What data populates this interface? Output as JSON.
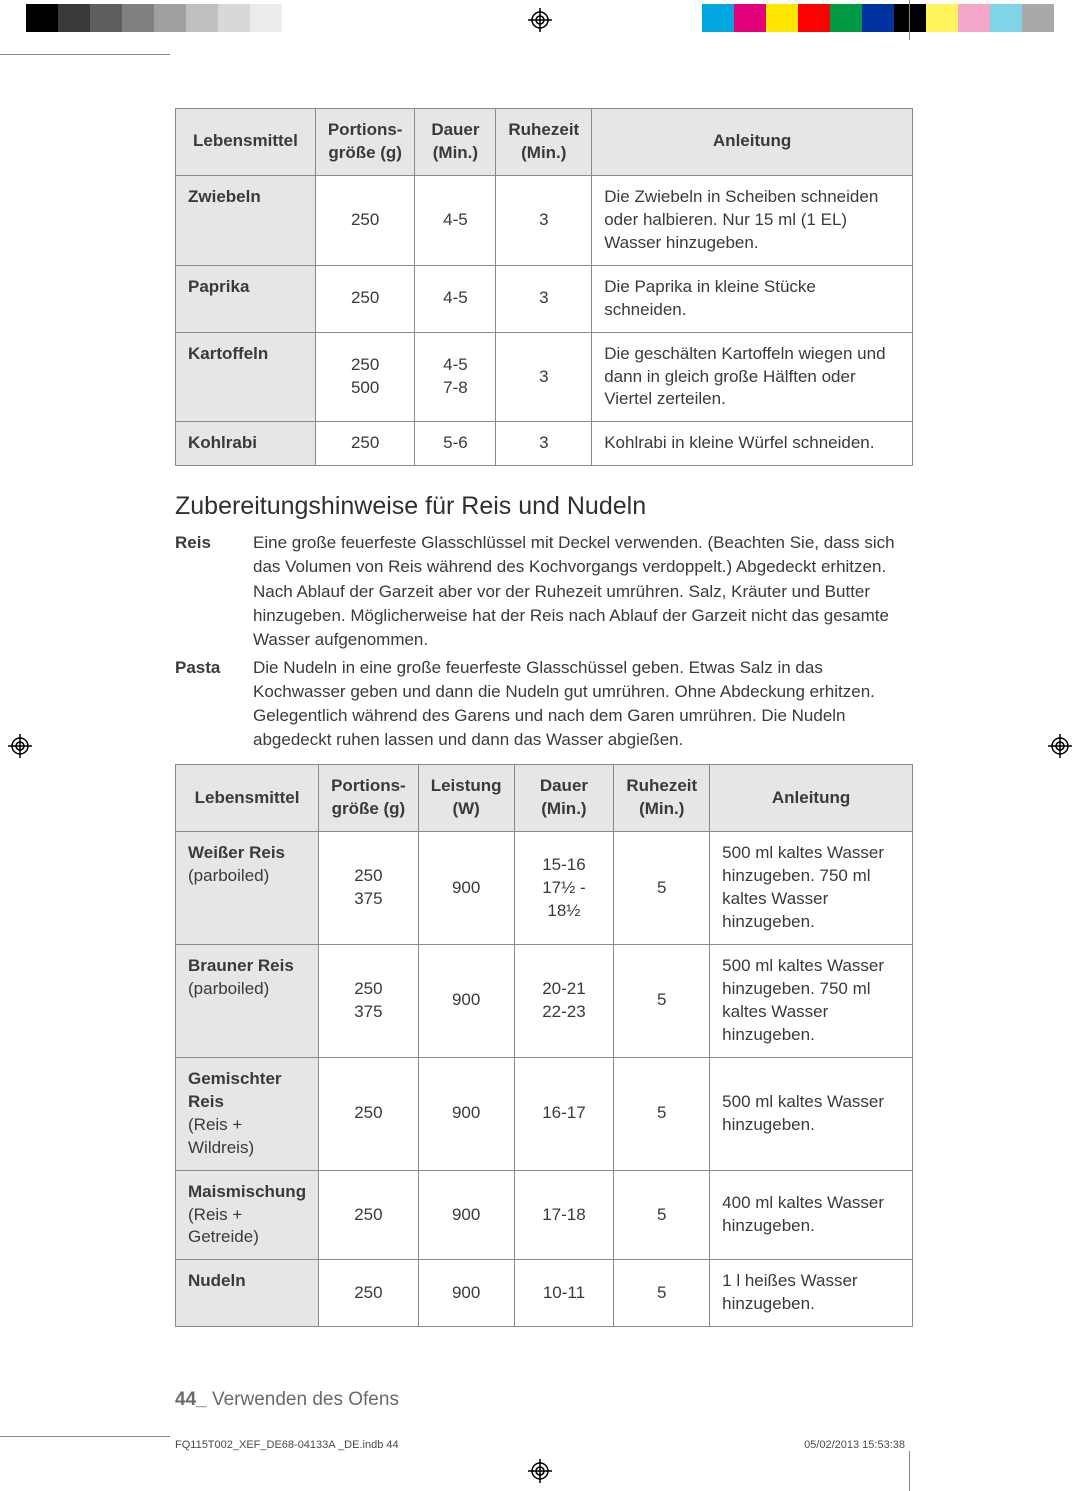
{
  "printer_marks": {
    "left_swatches": [
      "#000000",
      "#3a3a3a",
      "#5e5e5e",
      "#808080",
      "#a0a0a0",
      "#c0c0c0",
      "#d8d8d8",
      "#ececec",
      "#ffffff"
    ],
    "right_swatches": [
      "#00a7e1",
      "#e3007b",
      "#ffe600",
      "#ff0000",
      "#009944",
      "#0033a0",
      "#000000",
      "#fff45c",
      "#f5a6c9",
      "#7fd4e8",
      "#a9a9a9"
    ]
  },
  "table1": {
    "columns": [
      "Lebensmittel",
      "Portions-größe (g)",
      "Dauer (Min.)",
      "Ruhezeit (Min.)",
      "Anleitung"
    ],
    "col_widths_pct": [
      19,
      13,
      11,
      13,
      44
    ],
    "rows": [
      {
        "food": "Zwiebeln",
        "portion": "250",
        "time": "4-5",
        "rest": "3",
        "instr": "Die Zwiebeln in Scheiben schneiden oder halbieren. Nur 15 ml (1 EL) Wasser hinzugeben."
      },
      {
        "food": "Paprika",
        "portion": "250",
        "time": "4-5",
        "rest": "3",
        "instr": "Die Paprika in kleine Stücke schneiden."
      },
      {
        "food": "Kartoffeln",
        "portion": "250\n500",
        "time": "4-5\n7-8",
        "rest": "3",
        "instr": "Die geschälten Kartoffeln wiegen und dann in gleich große Hälften oder Viertel zerteilen."
      },
      {
        "food": "Kohlrabi",
        "portion": "250",
        "time": "5-6",
        "rest": "3",
        "instr": "Kohlrabi in kleine Würfel schneiden."
      }
    ]
  },
  "section": {
    "title": "Zubereitungshinweise für Reis und Nudeln",
    "reis_label": "Reis",
    "reis_text": "Eine große feuerfeste Glasschlüssel mit Deckel verwenden. (Beachten Sie, dass sich das Volumen von Reis während des Kochvorgangs verdoppelt.) Abgedeckt erhitzen. Nach Ablauf der Garzeit aber vor der Ruhezeit umrühren. Salz, Kräuter und Butter hinzugeben. Möglicherweise hat der Reis nach Ablauf der Garzeit nicht das gesamte Wasser aufgenommen.",
    "pasta_label": "Pasta",
    "pasta_text": "Die Nudeln in eine große feuerfeste Glasschüssel geben. Etwas Salz in das Kochwasser geben und dann die Nudeln gut umrühren. Ohne Abdeckung erhitzen. Gelegentlich während des Garens und nach dem Garen umrühren. Die Nudeln abgedeckt ruhen lassen und dann das Wasser abgießen."
  },
  "table2": {
    "columns": [
      "Lebensmittel",
      "Portions-größe (g)",
      "Leistung (W)",
      "Dauer (Min.)",
      "Ruhezeit (Min.)",
      "Anleitung"
    ],
    "col_widths_pct": [
      19,
      13,
      12,
      14,
      13,
      29
    ],
    "rows": [
      {
        "food": "Weißer Reis",
        "food_sub": "(parboiled)",
        "portion": "250\n375",
        "power": "900",
        "time": "15-16\n17½ - 18½",
        "rest": "5",
        "instr": "500 ml kaltes Wasser hinzugeben. 750 ml kaltes Wasser hinzugeben."
      },
      {
        "food": "Brauner Reis",
        "food_sub": "(parboiled)",
        "portion": "250\n375",
        "power": "900",
        "time": "20-21\n22-23",
        "rest": "5",
        "instr": "500 ml kaltes Wasser hinzugeben. 750 ml kaltes Wasser hinzugeben."
      },
      {
        "food": "Gemischter Reis",
        "food_sub": "(Reis + Wildreis)",
        "portion": "250",
        "power": "900",
        "time": "16-17",
        "rest": "5",
        "instr": "500 ml kaltes Wasser hinzugeben."
      },
      {
        "food": "Maismischung",
        "food_sub": "(Reis + Getreide)",
        "portion": "250",
        "power": "900",
        "time": "17-18",
        "rest": "5",
        "instr": "400 ml kaltes Wasser hinzugeben."
      },
      {
        "food": "Nudeln",
        "food_sub": "",
        "portion": "250",
        "power": "900",
        "time": "10-11",
        "rest": "5",
        "instr": "1 l heißes Wasser hinzugeben."
      }
    ]
  },
  "footer": {
    "page_num": "44_",
    "page_label": " Verwenden des Ofens",
    "meta_left": "FQ115T002_XEF_DE68-04133A _DE.indb   44",
    "meta_right": "05/02/2013   15:53:38"
  }
}
